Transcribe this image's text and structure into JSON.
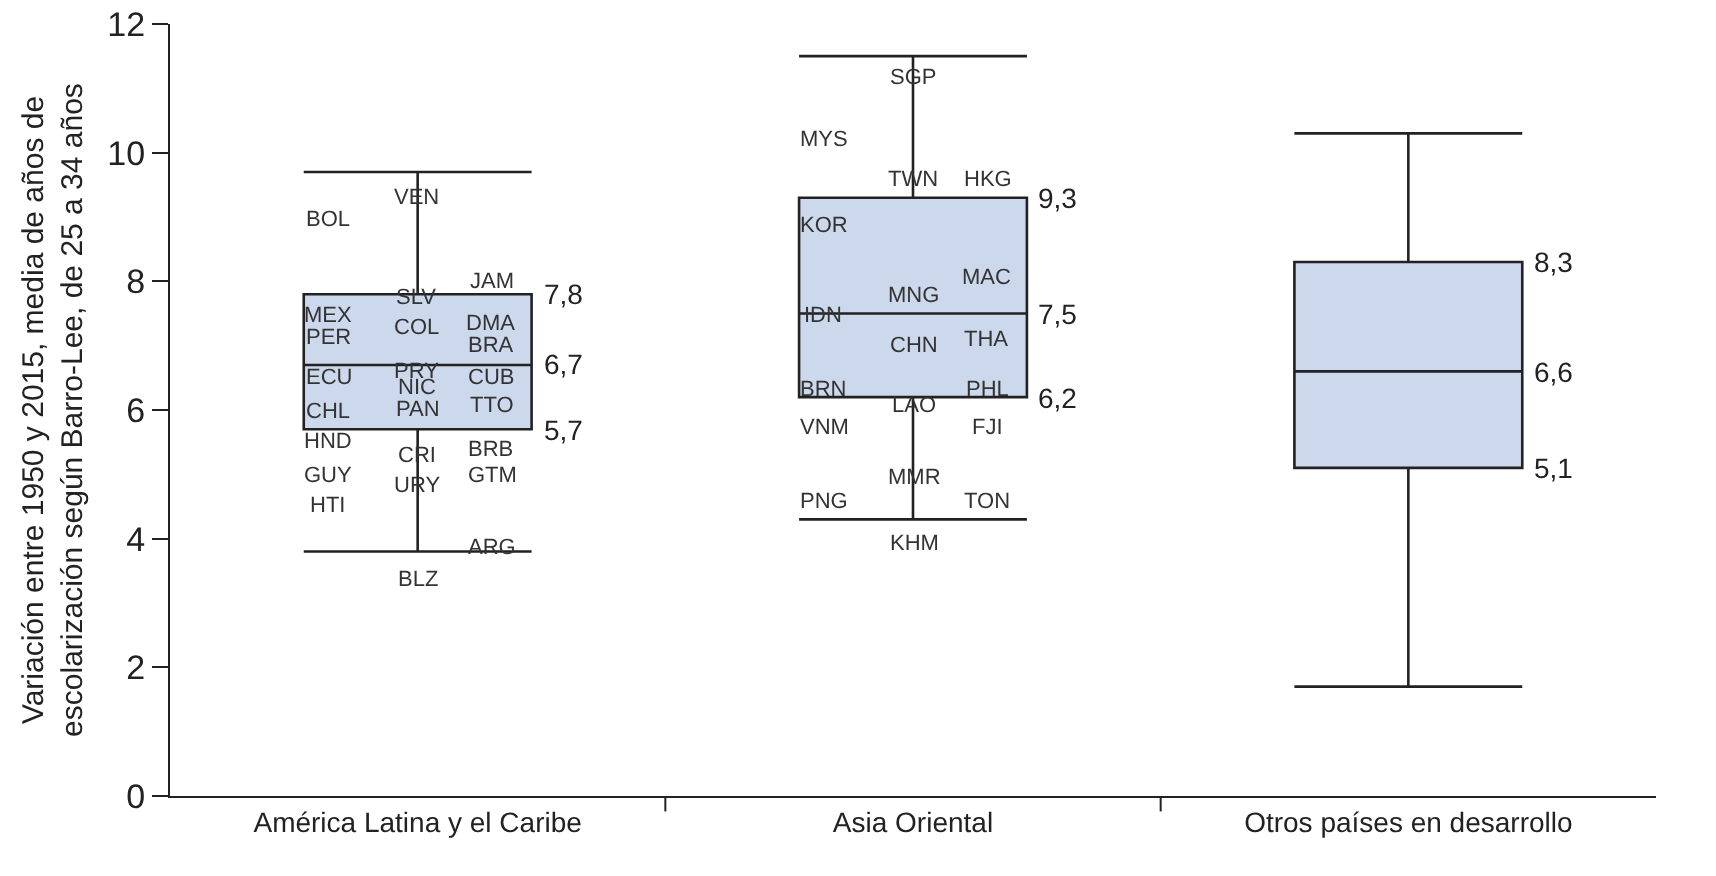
{
  "chart_data": {
    "type": "box",
    "ylabel": "Variación entre 1950 y 2015, media de años de\nescolarización según Barro-Lee, de 25 a 34 años",
    "categories": [
      "América Latina y el Caribe",
      "Asia Oriental",
      "Otros países en desarrollo"
    ],
    "boxes": [
      {
        "low": 3.8,
        "q1": 5.7,
        "median": 6.7,
        "q3": 7.8,
        "high": 9.7
      },
      {
        "low": 4.3,
        "q1": 6.2,
        "median": 7.5,
        "q3": 9.3,
        "high": 11.5
      },
      {
        "low": 1.7,
        "q1": 5.1,
        "median": 6.6,
        "q3": 8.3,
        "high": 10.3
      }
    ],
    "color": "#ccd9ec",
    "ylim": [
      0,
      12
    ],
    "yticks": [
      0,
      2,
      4,
      6,
      8,
      10,
      12
    ],
    "grid": false,
    "legend": false,
    "annotations": [
      "7,8",
      "6,7",
      "5,7",
      "9,3",
      "7,5",
      "6,2",
      "8,3",
      "6,6",
      "5,1",
      "VEN",
      "BOL",
      "JAM",
      "SLV",
      "MEX",
      "PER",
      "COL",
      "DMA",
      "BRA",
      "ECU",
      "PRY",
      "NIC",
      "PAN",
      "CUB",
      "TTO",
      "CHL",
      "HND",
      "CRI",
      "BRB",
      "GUY",
      "URY",
      "GTM",
      "HTI",
      "ARG",
      "BLZ",
      "SGP",
      "MYS",
      "TWN",
      "HKG",
      "KOR",
      "MAC",
      "MNG",
      "IDN",
      "CHN",
      "THA",
      "BRN",
      "LAO",
      "PHL",
      "VNM",
      "FJI",
      "MMR",
      "PNG",
      "TON",
      "KHM"
    ]
  }
}
